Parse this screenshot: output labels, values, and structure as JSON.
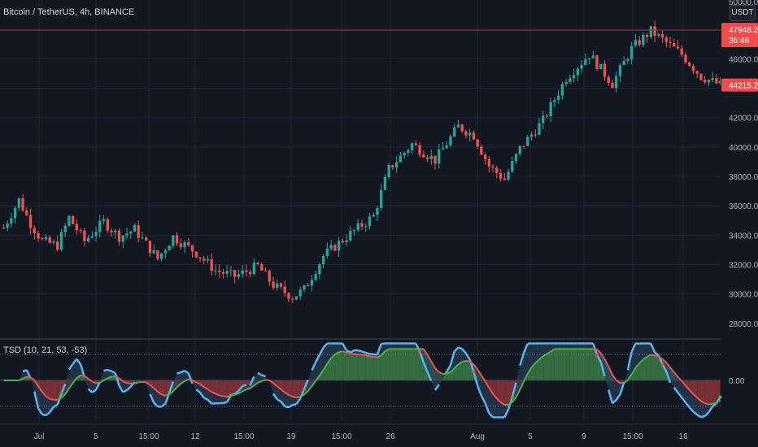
{
  "symbol_title": "Bitcoin / TetherUS, 4h, BINANCE",
  "indicator_title": "TSD (10, 21, 53, -53)",
  "currency": "USDT",
  "price_axis": {
    "ticks": [
      "28000.00",
      "30000.00",
      "32000.00",
      "34000.00",
      "36000.00",
      "38000.00",
      "40000.00",
      "42000.00",
      "46000.00",
      "50000.00"
    ],
    "top_label_partial": "50000.00"
  },
  "price_badges": {
    "high_line_value": "47948.23",
    "countdown": "36:48",
    "last_price": "44215.25"
  },
  "indicator_axis": {
    "zero_label": "0.00"
  },
  "time_axis": {
    "labels": [
      "Jul",
      "5",
      "15:00",
      "12",
      "15:00",
      "19",
      "15:00",
      "26",
      "Aug",
      "5",
      "9",
      "15:00",
      "16"
    ]
  },
  "colors": {
    "background": "#131722",
    "up_candle": "#26a69a",
    "down_candle": "#ef5350",
    "fill_green": "#3a7d44",
    "fill_red": "#8a3538",
    "fill_blue": "#2a3d55",
    "fast_line": "#5ab4f0",
    "slow_green": "#4caf50",
    "slow_red": "#ef5350",
    "badge_red": "#f04c4c"
  },
  "chart_data": {
    "type": "candlestick",
    "ylim": [
      27000,
      50000
    ],
    "price_anchors": [
      [
        0,
        34500
      ],
      [
        4,
        36400
      ],
      [
        7,
        34800
      ],
      [
        10,
        33600
      ],
      [
        14,
        33300
      ],
      [
        17,
        35200
      ],
      [
        21,
        33600
      ],
      [
        26,
        34900
      ],
      [
        30,
        33900
      ],
      [
        34,
        34400
      ],
      [
        40,
        32400
      ],
      [
        44,
        33900
      ],
      [
        50,
        32800
      ],
      [
        55,
        31600
      ],
      [
        60,
        31200
      ],
      [
        66,
        31900
      ],
      [
        70,
        30600
      ],
      [
        75,
        29800
      ],
      [
        78,
        30300
      ],
      [
        83,
        32600
      ],
      [
        90,
        34100
      ],
      [
        96,
        35300
      ],
      [
        100,
        38500
      ],
      [
        106,
        40200
      ],
      [
        112,
        39100
      ],
      [
        118,
        41400
      ],
      [
        122,
        40800
      ],
      [
        126,
        38700
      ],
      [
        130,
        37800
      ],
      [
        134,
        39900
      ],
      [
        140,
        41800
      ],
      [
        146,
        44700
      ],
      [
        152,
        46300
      ],
      [
        158,
        44300
      ],
      [
        163,
        46700
      ],
      [
        168,
        47900
      ],
      [
        173,
        46900
      ],
      [
        176,
        46300
      ],
      [
        181,
        44800
      ],
      [
        186,
        44215
      ]
    ],
    "indicator": {
      "ylim": [
        -2.2,
        2.2
      ],
      "upper_band": 1.4,
      "lower_band": -1.4
    }
  }
}
